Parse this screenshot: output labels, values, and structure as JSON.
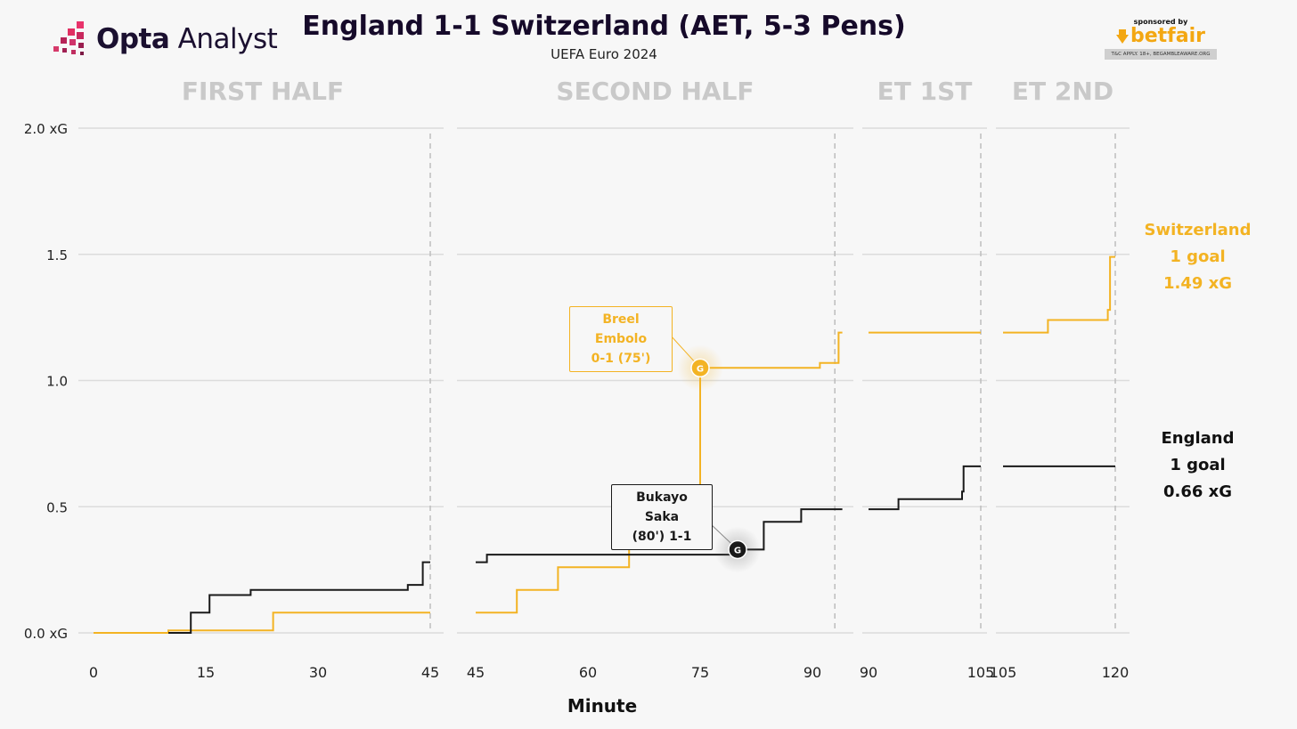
{
  "header": {
    "logo_text": "Opta",
    "logo_text_2": "Analyst",
    "title": "England 1-1 Switzerland (AET, 5-3 Pens)",
    "subtitle": "UEFA Euro 2024",
    "sponsor_top": "sponsored by",
    "sponsor_brand": "betfair",
    "sponsor_note": "T&C APPLY. 18+, BEGAMBLEAWARE.ORG"
  },
  "colors": {
    "switzerland": "#f3b323",
    "england": "#1a1a1a",
    "grid": "#dcdcdc",
    "period_label": "#c9c9c9",
    "background": "#f7f7f7"
  },
  "chart_data": {
    "type": "line",
    "step": true,
    "xlabel": "Minute",
    "ylabel": "",
    "ylim": [
      0,
      2.0
    ],
    "y_ticks": [
      {
        "value": 0,
        "label": "0.0 xG"
      },
      {
        "value": 0.5,
        "label": "0.5"
      },
      {
        "value": 1.0,
        "label": "1.0"
      },
      {
        "value": 1.5,
        "label": "1.5"
      },
      {
        "value": 2.0,
        "label": "2.0 xG"
      }
    ],
    "grid": true,
    "periods": [
      {
        "label": "FIRST HALF",
        "xlim": [
          0,
          45
        ],
        "end": 45,
        "ticks": [
          0,
          15,
          30,
          45
        ]
      },
      {
        "label": "SECOND HALF",
        "xlim": [
          45,
          90
        ],
        "end": 93,
        "ticks": [
          45,
          60,
          75,
          90
        ]
      },
      {
        "label": "ET 1ST",
        "xlim": [
          90,
          105
        ],
        "end": 105,
        "ticks": [
          90,
          105
        ]
      },
      {
        "label": "ET 2ND",
        "xlim": [
          105,
          120
        ],
        "end": 120,
        "ticks": [
          105,
          120
        ]
      }
    ],
    "series": [
      {
        "name": "Switzerland",
        "key": "switzerland",
        "goals_label": "1 goal",
        "xg_label": "1.49 xG",
        "segments": [
          [
            [
              0,
              0
            ],
            [
              10,
              0
            ],
            [
              10,
              0.01
            ],
            [
              24,
              0.01
            ],
            [
              24,
              0.08
            ],
            [
              45,
              0.08
            ]
          ],
          [
            [
              45,
              0.08
            ],
            [
              50.5,
              0.08
            ],
            [
              50.5,
              0.17
            ],
            [
              56,
              0.17
            ],
            [
              56,
              0.26
            ],
            [
              65.5,
              0.26
            ],
            [
              65.5,
              0.34
            ],
            [
              75,
              0.34
            ],
            [
              75,
              1.05
            ],
            [
              91,
              1.05
            ],
            [
              91,
              1.07
            ],
            [
              93.5,
              1.07
            ],
            [
              93.5,
              1.19
            ],
            [
              94,
              1.19
            ]
          ],
          [
            [
              90,
              1.19
            ],
            [
              105,
              1.19
            ]
          ],
          [
            [
              105,
              1.19
            ],
            [
              111,
              1.19
            ],
            [
              111,
              1.24
            ],
            [
              119,
              1.24
            ],
            [
              119,
              1.28
            ],
            [
              119.3,
              1.28
            ],
            [
              119.3,
              1.49
            ],
            [
              120,
              1.49
            ]
          ]
        ]
      },
      {
        "name": "England",
        "key": "england",
        "goals_label": "1 goal",
        "xg_label": "0.66 xG",
        "segments": [
          [
            [
              10,
              0
            ],
            [
              13,
              0
            ],
            [
              13,
              0.08
            ],
            [
              15.5,
              0.08
            ],
            [
              15.5,
              0.15
            ],
            [
              21,
              0.15
            ],
            [
              21,
              0.17
            ],
            [
              42,
              0.17
            ],
            [
              42,
              0.19
            ],
            [
              44,
              0.19
            ],
            [
              44,
              0.28
            ],
            [
              45,
              0.28
            ]
          ],
          [
            [
              45,
              0.28
            ],
            [
              46.5,
              0.28
            ],
            [
              46.5,
              0.31
            ],
            [
              80,
              0.31
            ],
            [
              80,
              0.33
            ],
            [
              83.5,
              0.33
            ],
            [
              83.5,
              0.44
            ],
            [
              88.5,
              0.44
            ],
            [
              88.5,
              0.49
            ],
            [
              94,
              0.49
            ]
          ],
          [
            [
              90,
              0.49
            ],
            [
              94,
              0.49
            ],
            [
              94,
              0.53
            ],
            [
              102.5,
              0.53
            ],
            [
              102.5,
              0.56
            ],
            [
              102.7,
              0.56
            ],
            [
              102.7,
              0.66
            ],
            [
              105,
              0.66
            ]
          ],
          [
            [
              105,
              0.66
            ],
            [
              120,
              0.66
            ]
          ]
        ]
      }
    ],
    "annotations": [
      {
        "series": "switzerland",
        "minute": 75,
        "xg": 1.05,
        "marker": "G",
        "line1": "Breel Embolo",
        "line2": "0-1 (75')"
      },
      {
        "series": "england",
        "minute": 80,
        "xg": 0.33,
        "marker": "G",
        "line1": "Bukayo Saka",
        "line2": "(80') 1-1"
      }
    ]
  }
}
